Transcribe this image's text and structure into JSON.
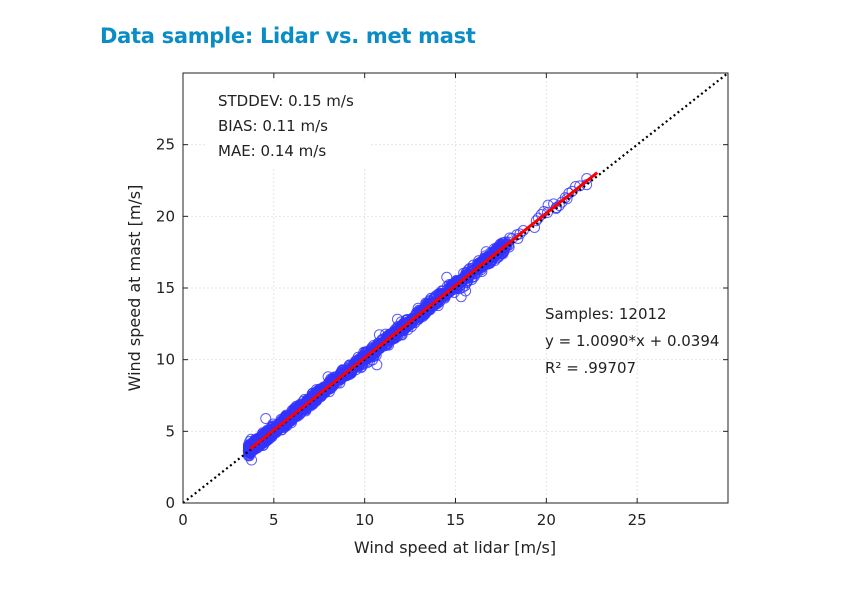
{
  "title": "Data sample: Lidar vs. met mast",
  "chart_data": {
    "type": "scatter",
    "xlabel": "Wind speed at lidar [m/s]",
    "ylabel": "Wind speed at mast [m/s]",
    "xlim": [
      0,
      30
    ],
    "ylim": [
      0,
      30
    ],
    "xticks": [
      "0",
      "5",
      "10",
      "15",
      "20",
      "25"
    ],
    "yticks": [
      "0",
      "5",
      "10",
      "15",
      "20",
      "25"
    ],
    "grid": true,
    "stats": [
      "STDDEV: 0.15 m/s",
      "BIAS: 0.11 m/s",
      "MAE: 0.14 m/s"
    ],
    "fit_text": [
      "Samples: 12012",
      "y = 1.0090*x + 0.0394",
      "R² = .99707"
    ],
    "samples": 12012,
    "fit": {
      "slope": 1.009,
      "intercept": 0.0394,
      "x_range": [
        3.7,
        22.8
      ]
    },
    "x_data_range": [
      3.6,
      22.8
    ],
    "reference_line": "y = x",
    "colors": {
      "points": "#3333ff",
      "fit": "#ff0000",
      "reference": "#000000",
      "title": "#0a8cc4"
    }
  }
}
